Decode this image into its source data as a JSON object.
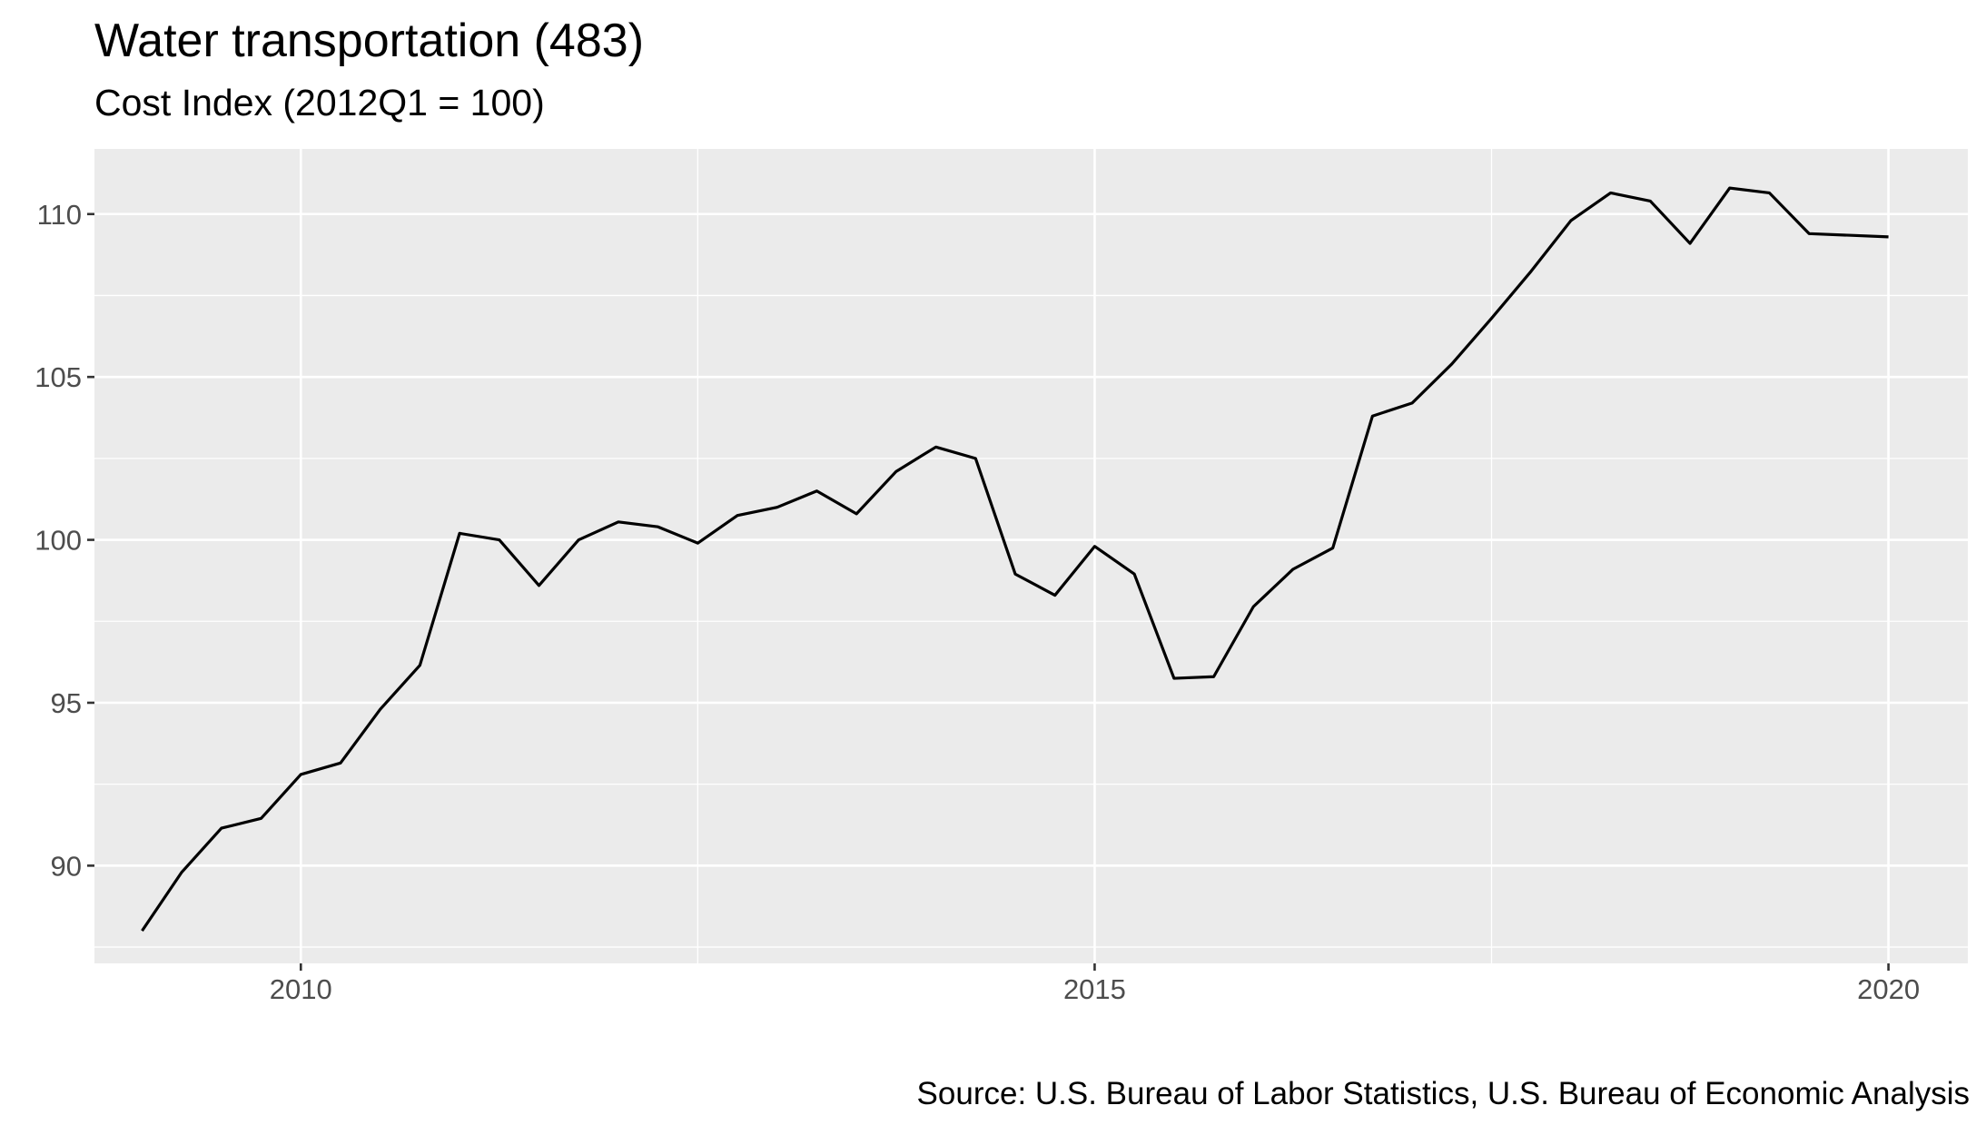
{
  "chart_data": {
    "type": "line",
    "title": "Water transportation (483)",
    "subtitle": "Cost Index (2012Q1 = 100)",
    "caption": "Source: U.S. Bureau of Labor Statistics, U.S. Bureau of Economic Analysis",
    "xlabel": "",
    "ylabel": "",
    "xlim": [
      2008.7,
      2020.5
    ],
    "ylim": [
      87.0,
      112.0
    ],
    "x_ticks": [
      2010,
      2015,
      2020
    ],
    "x_tick_labels": [
      "2010",
      "2015",
      "2020"
    ],
    "y_ticks": [
      90,
      95,
      100,
      105,
      110
    ],
    "y_tick_labels": [
      "90",
      "95",
      "100",
      "105",
      "110"
    ],
    "grid": true,
    "line_color": "#000000",
    "panel_background": "#ebebeb",
    "grid_color": "#ffffff",
    "series": [
      {
        "x": [
          2009.0,
          2009.25,
          2009.5,
          2009.75,
          2010.0,
          2010.25,
          2010.5,
          2010.75,
          2011.0,
          2011.25,
          2011.5,
          2011.75,
          2012.0,
          2012.25,
          2012.5,
          2012.75,
          2013.0,
          2013.25,
          2013.5,
          2013.75,
          2014.0,
          2014.25,
          2014.5,
          2014.75,
          2015.0,
          2015.25,
          2015.5,
          2015.75,
          2016.0,
          2016.25,
          2016.5,
          2016.75,
          2017.0,
          2017.25,
          2017.5,
          2017.75,
          2018.0,
          2018.25,
          2018.5,
          2018.75,
          2019.0,
          2019.25,
          2019.5,
          2019.75,
          2020.0
        ],
        "values": [
          88.0,
          89.8,
          91.15,
          91.45,
          92.8,
          93.15,
          94.8,
          96.15,
          100.2,
          100.0,
          98.6,
          100.0,
          100.55,
          100.4,
          99.9,
          100.75,
          101.0,
          101.5,
          100.8,
          102.1,
          102.85,
          102.5,
          98.95,
          98.3,
          99.8,
          98.95,
          95.75,
          95.8,
          97.95,
          99.1,
          99.75,
          103.8,
          104.2,
          105.4,
          106.8,
          108.25,
          109.8,
          110.65,
          110.4,
          109.1,
          110.8,
          110.65,
          109.4,
          109.35,
          109.3
        ]
      }
    ]
  }
}
